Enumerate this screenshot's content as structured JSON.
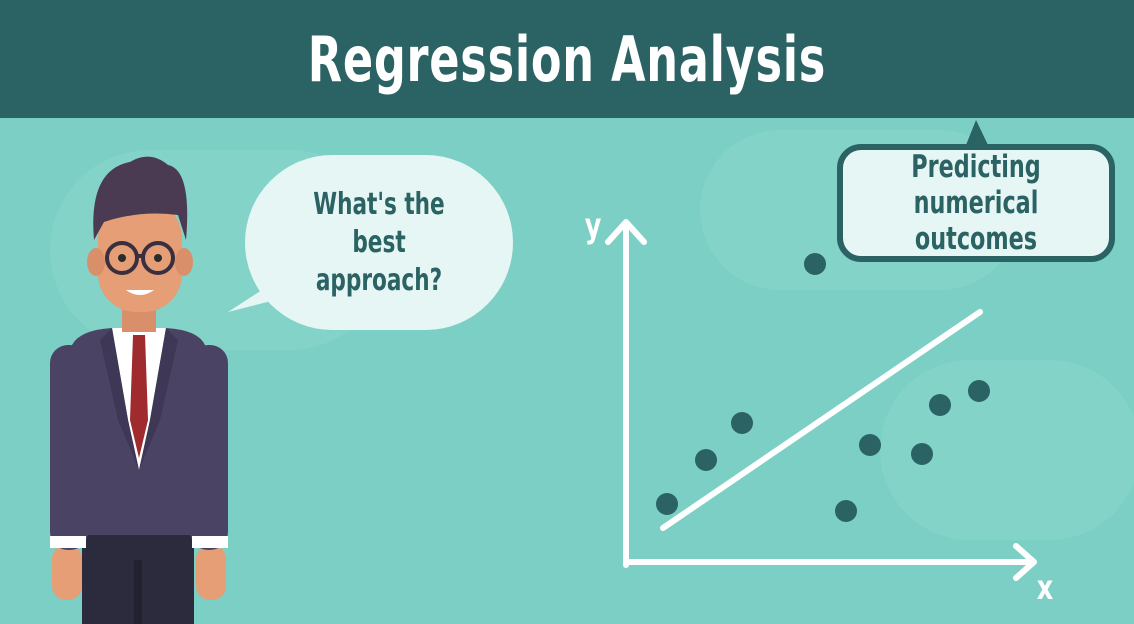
{
  "header": {
    "title": "Regression Analysis"
  },
  "speech_bubble": {
    "text": "What's the best approach?"
  },
  "callout": {
    "text": "Predicting numerical outcomes"
  },
  "chart": {
    "y_label": "y",
    "x_label": "x"
  },
  "colors": {
    "header_bg": "#2b6263",
    "background": "#7ccfc4",
    "point": "#2b6263",
    "line": "#ffffff",
    "bubble": "#e6f6f4"
  }
}
